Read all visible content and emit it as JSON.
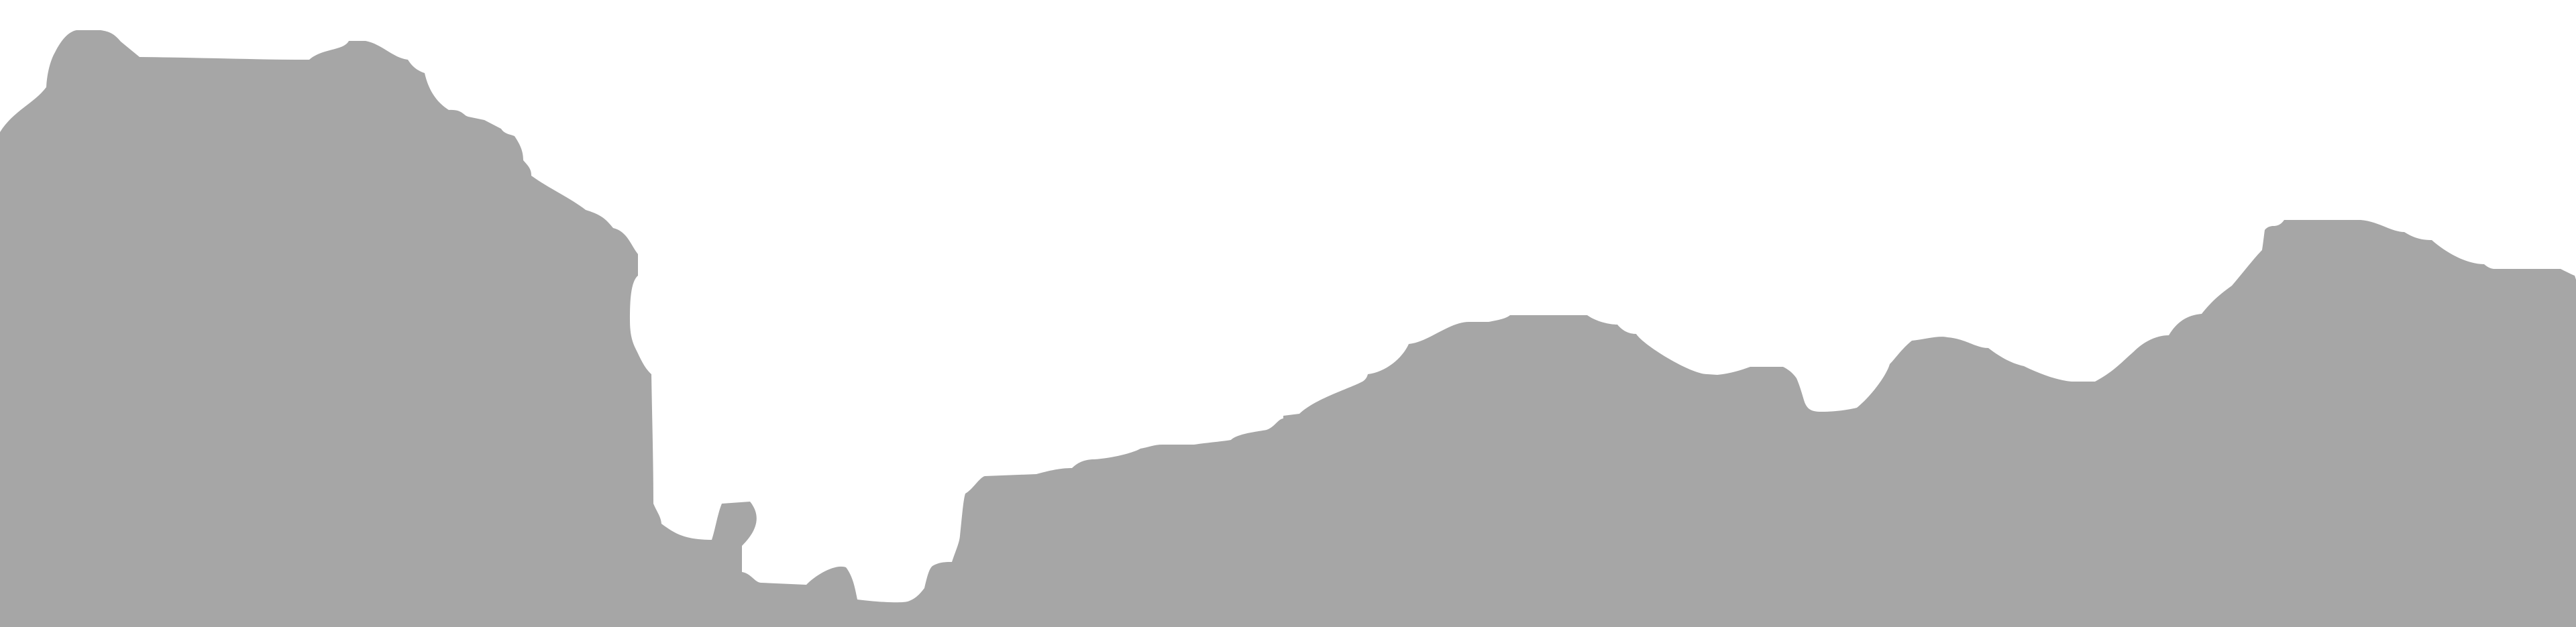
{
  "profile": {
    "fill_color": "#a6a6a6",
    "background_color": "#ffffff"
  }
}
